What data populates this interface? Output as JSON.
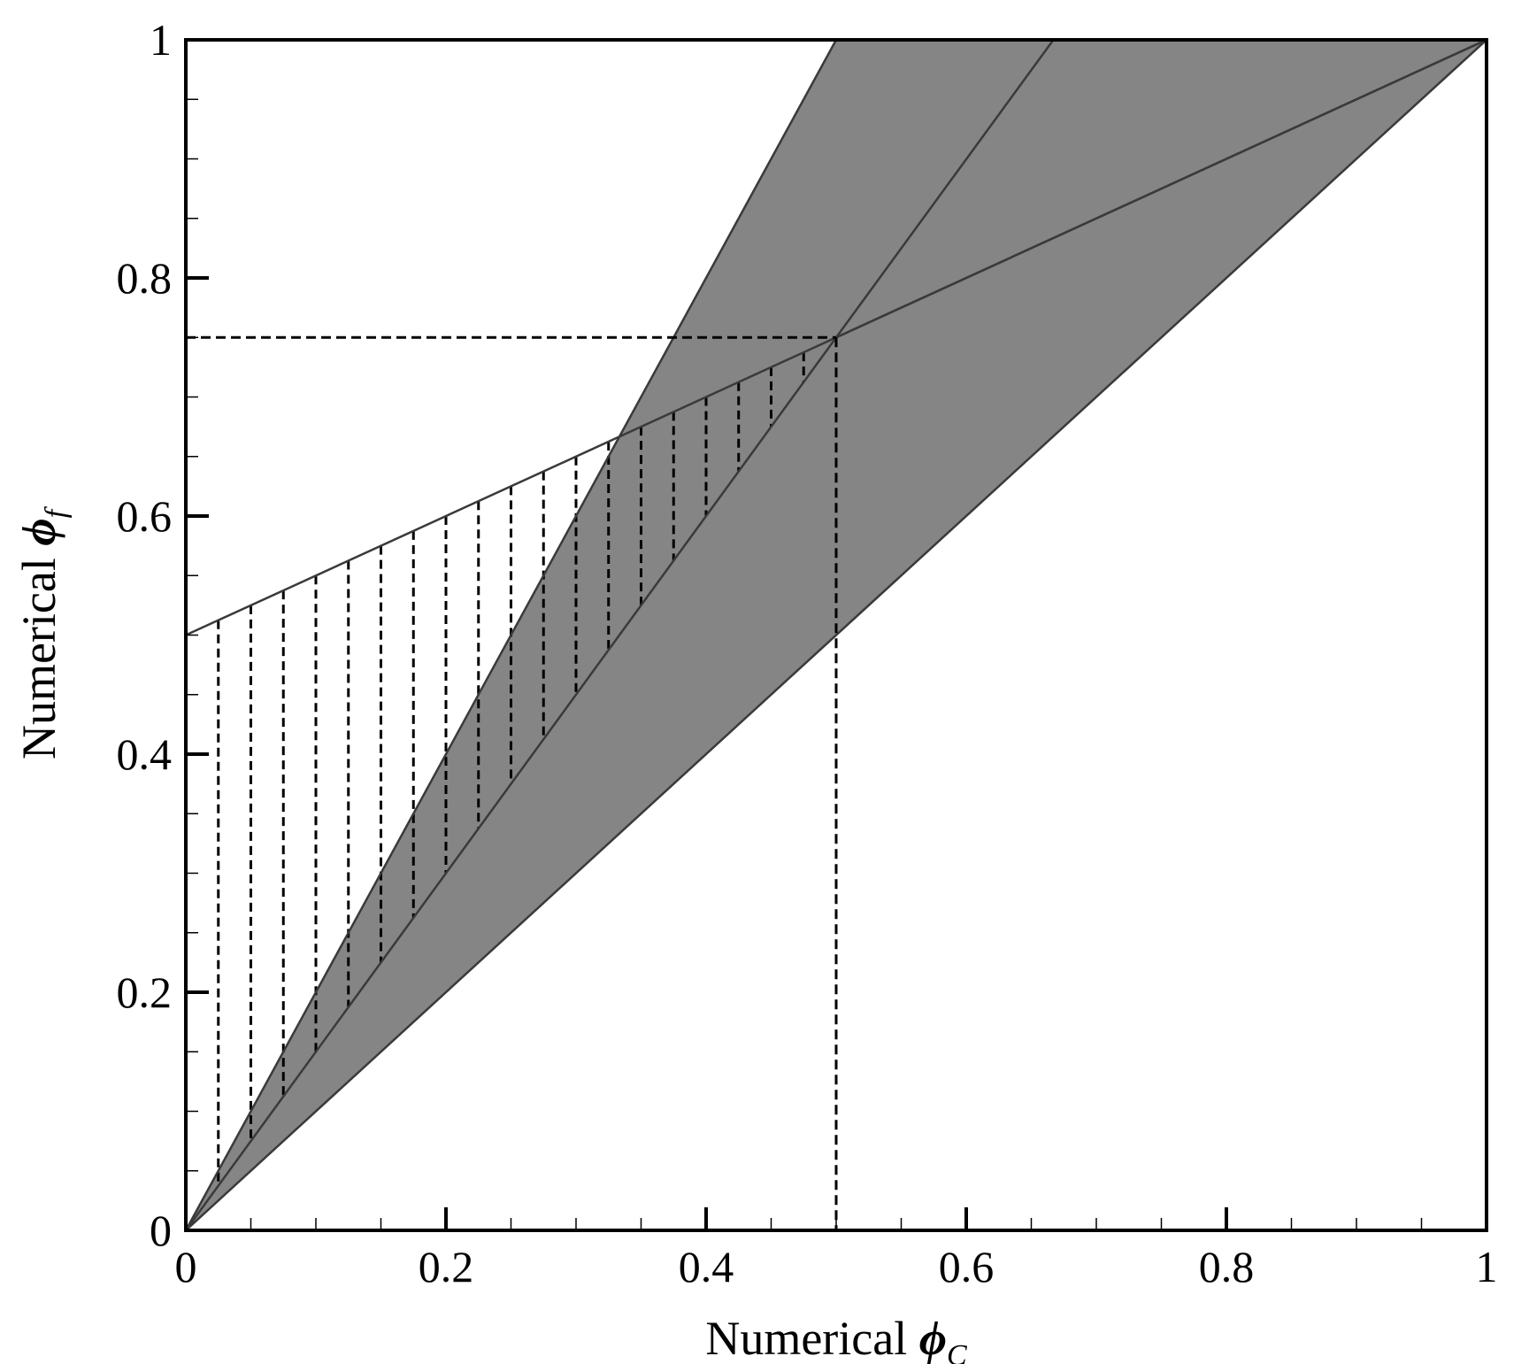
{
  "chart_data": {
    "type": "area",
    "title": "",
    "xlabel": {
      "text": "Numerical ",
      "symbol": "ϕ",
      "subscript": "C"
    },
    "ylabel": {
      "text": "Numerical ",
      "symbol": "ϕ",
      "subscript": "f"
    },
    "xlim": [
      0,
      1
    ],
    "ylim": [
      0,
      1
    ],
    "grid": false,
    "legend": "none",
    "x_ticks": [
      {
        "value": 0,
        "label": "0"
      },
      {
        "value": 0.2,
        "label": "0.2"
      },
      {
        "value": 0.4,
        "label": "0.4"
      },
      {
        "value": 0.6,
        "label": "0.6"
      },
      {
        "value": 0.8,
        "label": "0.8"
      },
      {
        "value": 1,
        "label": "1"
      }
    ],
    "y_ticks": [
      {
        "value": 0,
        "label": "0"
      },
      {
        "value": 0.2,
        "label": "0.2"
      },
      {
        "value": 0.4,
        "label": "0.4"
      },
      {
        "value": 0.6,
        "label": "0.6"
      },
      {
        "value": 0.8,
        "label": "0.8"
      },
      {
        "value": 1,
        "label": "1"
      }
    ],
    "minor_tick_step": 0.05,
    "colors": {
      "region_fill": "#858585",
      "line": "#3a3a3a",
      "dash": "#000000",
      "frame": "#000000"
    },
    "shaded_regions": [
      {
        "name": "",
        "points": [
          [
            0,
            0
          ],
          [
            0.5,
            1
          ],
          [
            1,
            1
          ],
          [
            0.5,
            0.5
          ]
        ]
      },
      {
        "name": "",
        "points": [
          [
            0.5,
            0.75
          ],
          [
            0.667,
            1
          ],
          [
            1,
            1
          ],
          [
            0.7879,
            0.8939
          ],
          [
            0.5,
            0.75
          ]
        ]
      }
    ],
    "lines": [
      {
        "points": [
          [
            0,
            0
          ],
          [
            1,
            1
          ]
        ]
      },
      {
        "points": [
          [
            0,
            0
          ],
          [
            0.5,
            1
          ]
        ]
      },
      {
        "points": [
          [
            0,
            0
          ],
          [
            0.5,
            0.75
          ],
          [
            0.667,
            1
          ]
        ]
      },
      {
        "points": [
          [
            0,
            0.5
          ],
          [
            1,
            1
          ]
        ]
      },
      {
        "points": [
          [
            0.5,
            0.75
          ],
          [
            1,
            1
          ]
        ]
      }
    ],
    "hatch_regions": [
      {
        "x_range": [
          0,
          0.5
        ],
        "top": {
          "intercept": 0.5,
          "slope": 0.5
        },
        "bottom": {
          "intercept": 0,
          "slope": 1.5
        },
        "spacing": 0.025
      },
      {
        "x_range": [
          0.5,
          1
        ],
        "top": {
          "intercept": -0.5,
          "slope": 1.5,
          "cap": 1
        },
        "bottom": {
          "intercept": 0.5,
          "slope": 0.5
        },
        "spacing": 0.025
      }
    ],
    "reference_lines": [
      {
        "points": [
          [
            0,
            0.75
          ],
          [
            0.5,
            0.75
          ]
        ]
      },
      {
        "points": [
          [
            0.5,
            0.75
          ],
          [
            0.5,
            0
          ]
        ]
      }
    ]
  }
}
